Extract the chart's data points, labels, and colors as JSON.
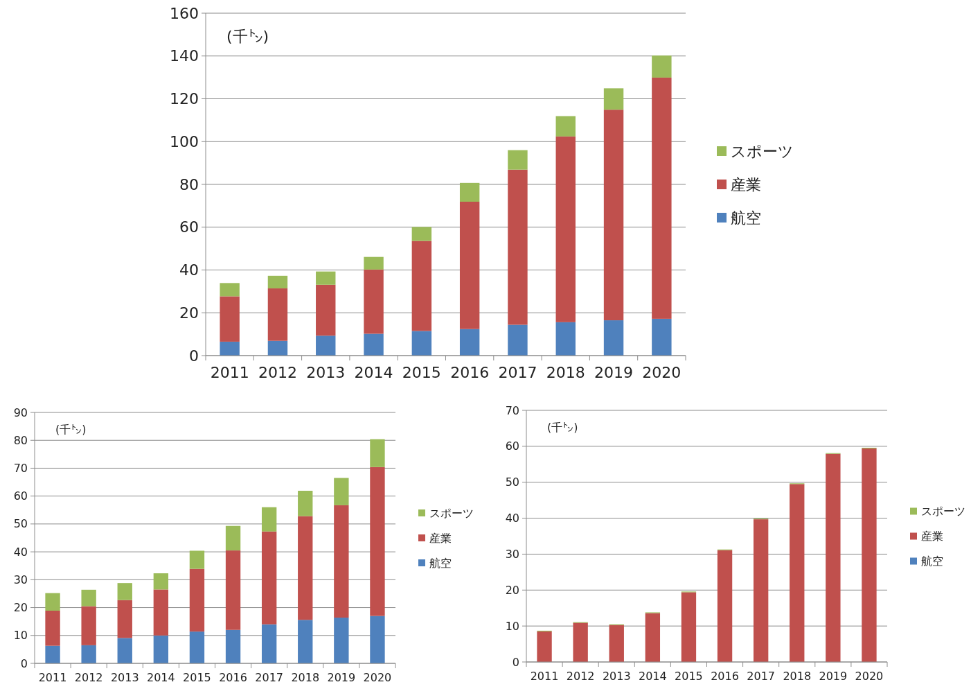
{
  "chart_data": [
    {
      "type": "bar",
      "stacked": true,
      "ylabel": "(千㌧)",
      "categories": [
        "2011",
        "2012",
        "2013",
        "2014",
        "2015",
        "2016",
        "2017",
        "2018",
        "2019",
        "2020"
      ],
      "series": [
        {
          "name": "航空",
          "color": "#4f81bd",
          "values": [
            6.5,
            6.9,
            9.3,
            10.2,
            11.5,
            12.4,
            14.4,
            15.6,
            16.5,
            17.2
          ]
        },
        {
          "name": "産業",
          "color": "#c0504d",
          "values": [
            21.2,
            24.5,
            23.8,
            30.0,
            42.1,
            59.5,
            72.5,
            86.8,
            98.4,
            112.7
          ]
        },
        {
          "name": "スポーツ",
          "color": "#9bbb59",
          "values": [
            6.2,
            5.9,
            6.2,
            5.9,
            6.5,
            8.8,
            9.1,
            9.5,
            10.0,
            10.3
          ]
        }
      ],
      "ylim": [
        0,
        160
      ],
      "yticks": [
        0,
        20,
        40,
        60,
        80,
        100,
        120,
        140,
        160
      ],
      "grid": "y",
      "legend": "right"
    },
    {
      "type": "bar",
      "stacked": true,
      "ylabel": "(千㌧)",
      "categories": [
        "2011",
        "2012",
        "2013",
        "2014",
        "2015",
        "2016",
        "2017",
        "2018",
        "2019",
        "2020"
      ],
      "series": [
        {
          "name": "航空",
          "color": "#4f81bd",
          "values": [
            6.3,
            6.5,
            9.1,
            10.0,
            11.4,
            12.0,
            14.0,
            15.6,
            16.4,
            17.0
          ]
        },
        {
          "name": "産業",
          "color": "#c0504d",
          "values": [
            12.6,
            14.0,
            13.6,
            16.5,
            22.5,
            28.5,
            33.3,
            37.2,
            40.3,
            53.4
          ]
        },
        {
          "name": "スポーツ",
          "color": "#9bbb59",
          "values": [
            6.3,
            5.9,
            6.1,
            5.8,
            6.5,
            8.8,
            8.7,
            9.1,
            9.8,
            10.0
          ]
        }
      ],
      "ylim": [
        0,
        90
      ],
      "yticks": [
        0,
        10,
        20,
        30,
        40,
        50,
        60,
        70,
        80,
        90
      ],
      "grid": "y",
      "legend": "right"
    },
    {
      "type": "bar",
      "stacked": true,
      "ylabel": "(千㌧)",
      "categories": [
        "2011",
        "2012",
        "2013",
        "2014",
        "2015",
        "2016",
        "2017",
        "2018",
        "2019",
        "2020"
      ],
      "series": [
        {
          "name": "航空",
          "color": "#4f81bd",
          "values": [
            0,
            0,
            0,
            0,
            0,
            0,
            0,
            0,
            0,
            0
          ]
        },
        {
          "name": "産業",
          "color": "#c0504d",
          "values": [
            8.5,
            10.9,
            10.3,
            13.6,
            19.4,
            31.1,
            39.7,
            49.5,
            57.9,
            59.4
          ]
        },
        {
          "name": "スポーツ",
          "color": "#9bbb59",
          "values": [
            0.2,
            0.2,
            0.2,
            0.2,
            0.2,
            0.2,
            0.2,
            0.2,
            0.2,
            0.2
          ]
        }
      ],
      "ylim": [
        0,
        70
      ],
      "yticks": [
        0,
        10,
        20,
        30,
        40,
        50,
        60,
        70
      ],
      "grid": "y",
      "legend": "right"
    }
  ]
}
